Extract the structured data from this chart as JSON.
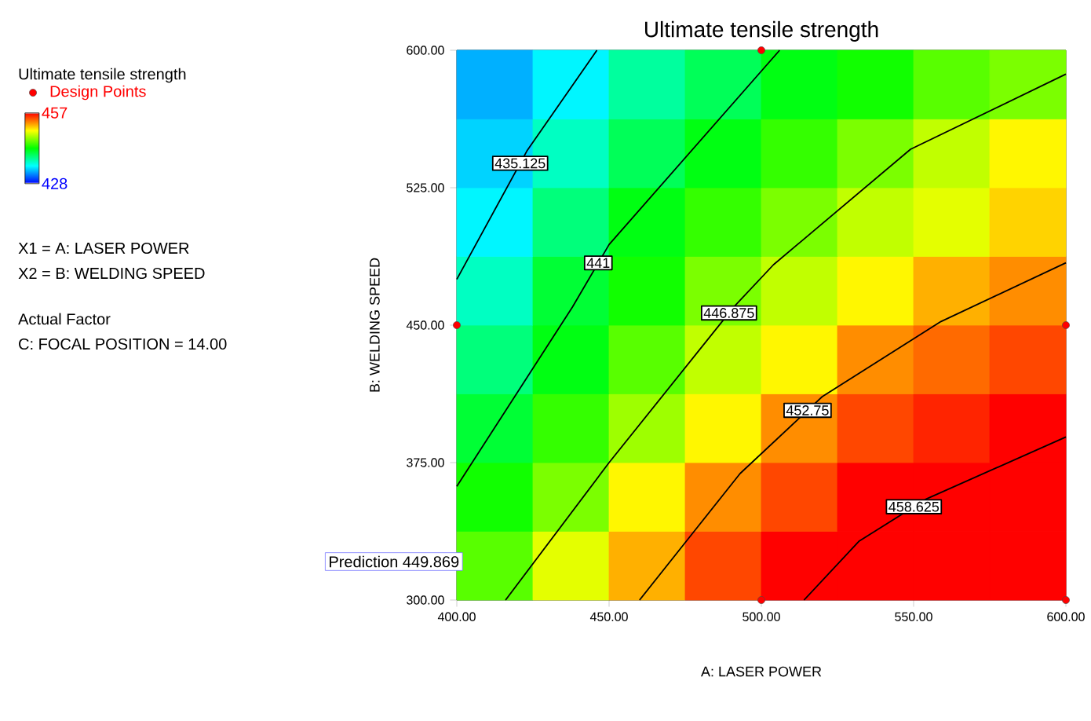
{
  "chart_data": {
    "type": "heatmap",
    "title": "Ultimate tensile strength",
    "xlabel": "A: LASER POWER",
    "ylabel": "B: WELDING SPEED",
    "legend_title": "Ultimate tensile strength",
    "cells": [
      [
        433,
        435,
        438,
        440,
        442,
        443,
        445,
        446
      ],
      [
        434,
        437,
        440,
        442,
        444,
        446,
        448,
        450
      ],
      [
        435,
        439,
        442,
        444,
        446,
        448,
        449,
        451
      ],
      [
        437,
        441,
        443,
        446,
        448,
        450,
        452,
        453
      ],
      [
        439,
        442,
        445,
        448,
        450,
        453,
        454,
        455
      ],
      [
        441,
        444,
        447,
        450,
        453,
        455,
        456,
        457
      ],
      [
        443,
        446,
        450,
        453,
        455,
        457,
        457,
        457
      ],
      [
        445,
        449,
        452,
        455,
        457,
        457,
        457,
        457
      ]
    ],
    "clim": [
      428,
      457
    ],
    "cticks": [
      428,
      457
    ],
    "xlim": [
      400,
      600
    ],
    "ylim": [
      300,
      600
    ],
    "xticks": [
      {
        "value": 400,
        "label": "400.00"
      },
      {
        "value": 450,
        "label": "450.00"
      },
      {
        "value": 500,
        "label": "500.00"
      },
      {
        "value": 550,
        "label": "550.00"
      },
      {
        "value": 600,
        "label": "600.00"
      }
    ],
    "yticks": [
      {
        "value": 300,
        "label": "300.00"
      },
      {
        "value": 375,
        "label": "375.00"
      },
      {
        "value": 450,
        "label": "450.00"
      },
      {
        "value": 525,
        "label": "525.00"
      },
      {
        "value": 600,
        "label": "600.00"
      }
    ],
    "series": [
      {
        "type": "line",
        "name": "435.125",
        "color": "#000000",
        "x": [
          400,
          423,
          446
        ],
        "values": [
          475,
          545,
          600
        ]
      },
      {
        "type": "line",
        "name": "441",
        "color": "#000000",
        "x": [
          400,
          438,
          450,
          506
        ],
        "values": [
          362,
          460,
          494,
          600
        ]
      },
      {
        "type": "line",
        "name": "446.875",
        "color": "#000000",
        "x": [
          416,
          450,
          491,
          504,
          549,
          600
        ],
        "values": [
          300,
          375,
          460,
          483,
          546,
          587
        ]
      },
      {
        "type": "line",
        "name": "452.75",
        "color": "#000000",
        "x": [
          460,
          493,
          520,
          559,
          600
        ],
        "values": [
          300,
          369,
          411,
          452,
          484
        ]
      },
      {
        "type": "line",
        "name": "458.625",
        "color": "#000000",
        "x": [
          514,
          532,
          554,
          600
        ],
        "values": [
          300,
          332,
          355,
          389
        ]
      },
      {
        "type": "scatter",
        "name": "Design Points",
        "color": "#ff0000",
        "marker": "circle",
        "x": [
          500,
          400,
          600,
          500,
          600
        ],
        "values": [
          600,
          450,
          450,
          300,
          300
        ]
      }
    ],
    "legend": "top left",
    "annotations": [
      "X1 = A: LASER POWER",
      "X2 = B: WELDING SPEED",
      "Actual Factor",
      "C: FOCAL POSITION = 14.00",
      "Prediction 449.869"
    ]
  }
}
